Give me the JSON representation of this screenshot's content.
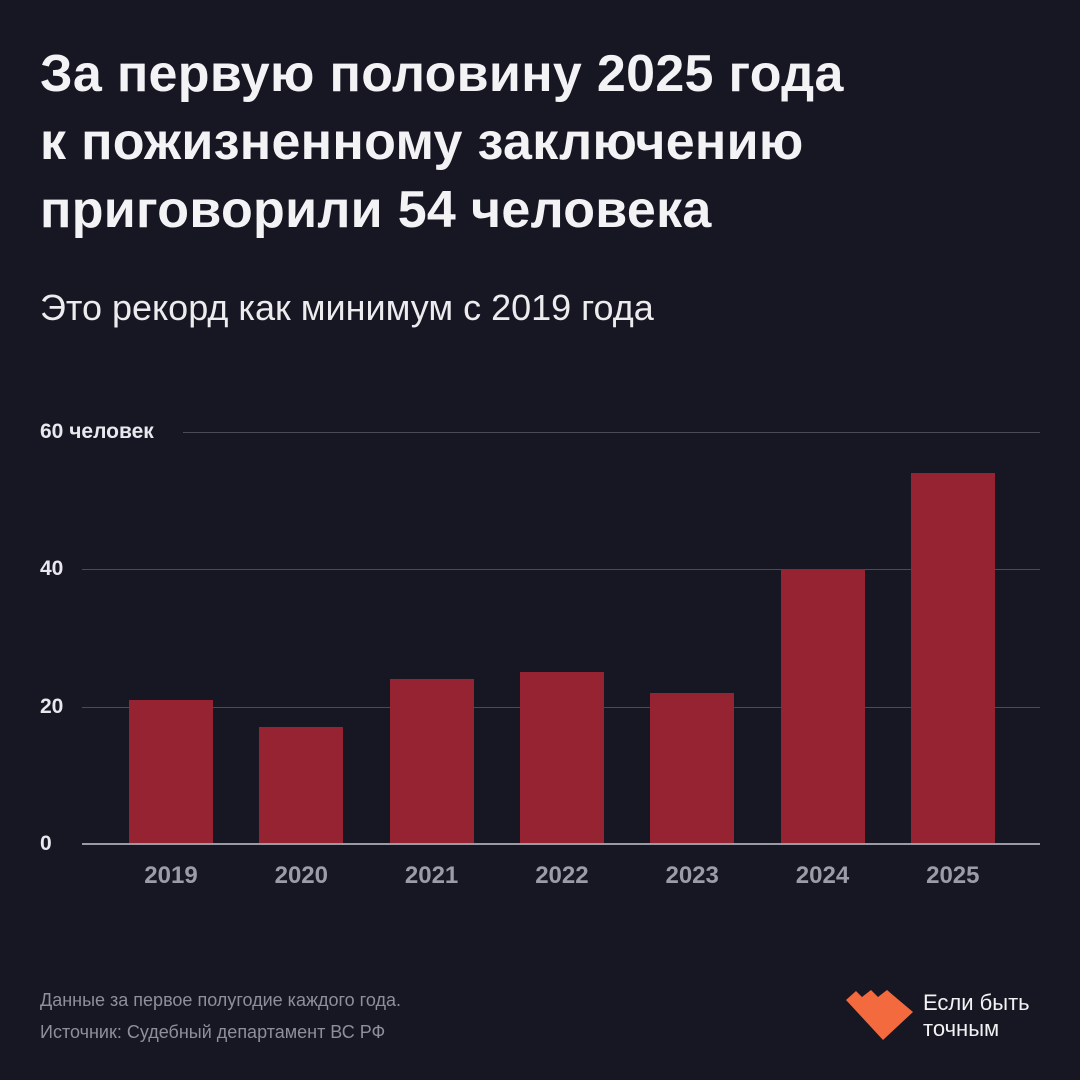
{
  "header": {
    "title_lines": [
      "За первую половину 2025 года",
      "к пожизненному заключению",
      "приговорили 54 человека"
    ],
    "subtitle": "Это рекорд как минимум с 2019 года"
  },
  "chart_data": {
    "type": "bar",
    "title": "За первую половину 2025 года к пожизненному заключению приговорили 54 человека",
    "subtitle": "Это рекорд как минимум с 2019 года",
    "categories": [
      "2019",
      "2020",
      "2021",
      "2022",
      "2023",
      "2024",
      "2025"
    ],
    "values": [
      21,
      17,
      24,
      25,
      22,
      40,
      54
    ],
    "xlabel": "",
    "ylabel": "человек",
    "ylim": [
      0,
      60
    ],
    "yticks": [
      0,
      20,
      40,
      60
    ],
    "ytick_labels": [
      "0",
      "20",
      "40",
      "60 человек"
    ],
    "grid": true,
    "bar_color": "#962331"
  },
  "footer": {
    "note": "Данные за первое полугодие каждого года.",
    "source": "Источник: Судебный департамент ВС РФ"
  },
  "brand": {
    "line1": "Если быть",
    "line2": "точным",
    "color": "#f26a3d",
    "icon": "heart-logo-icon"
  },
  "colors": {
    "background": "#161722",
    "bar": "#962331",
    "accent": "#f26a3d"
  }
}
